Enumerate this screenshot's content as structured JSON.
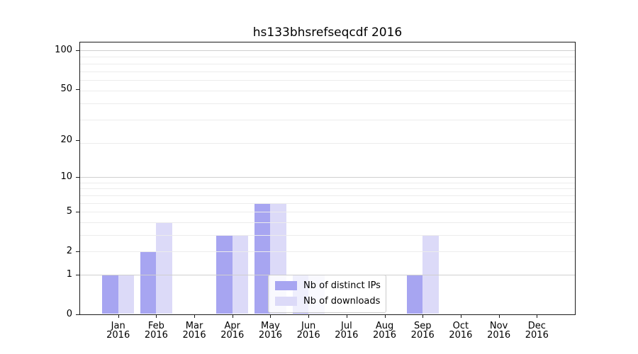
{
  "chart_data": {
    "type": "bar",
    "title": "hs133bhsrefseqcdf 2016",
    "categories": [
      "Jan 2016",
      "Feb 2016",
      "Mar 2016",
      "Apr 2016",
      "May 2016",
      "Jun 2016",
      "Jul 2016",
      "Aug 2016",
      "Sep 2016",
      "Oct 2016",
      "Nov 2016",
      "Dec 2016"
    ],
    "category_months": [
      "Jan",
      "Feb",
      "Mar",
      "Apr",
      "May",
      "Jun",
      "Jul",
      "Aug",
      "Sep",
      "Oct",
      "Nov",
      "Dec"
    ],
    "category_year": "2016",
    "series": [
      {
        "name": "Nb of distinct IPs",
        "color": "#a7a5f1",
        "values": [
          1,
          2,
          0,
          3,
          6,
          1,
          0,
          0,
          1,
          0,
          0,
          0
        ]
      },
      {
        "name": "Nb of downloads",
        "color": "#dcdaf8",
        "values": [
          1,
          4,
          0,
          3,
          6,
          1,
          0,
          0,
          3,
          0,
          0,
          0
        ]
      }
    ],
    "xlabel": "",
    "ylabel": "",
    "yscale": "log10(1+v)",
    "ylim": [
      0,
      115
    ],
    "yticks": [
      0,
      1,
      2,
      5,
      10,
      20,
      50,
      100
    ],
    "grid": "horizontal",
    "grid_major_values": [
      1,
      10,
      100
    ],
    "grid_minor_values": [
      2,
      3,
      4,
      5,
      6,
      7,
      8,
      9,
      19,
      29,
      39,
      49,
      59,
      69,
      79,
      89
    ],
    "legend_position": "lower-center-inside",
    "colors": {
      "grid_major": "#cfcfcf",
      "grid_minor": "#ececec",
      "axis": "#1a1a1a",
      "text": "#000000",
      "background": "#ffffff"
    }
  }
}
